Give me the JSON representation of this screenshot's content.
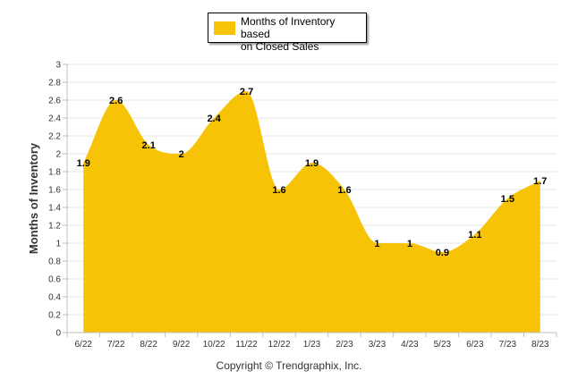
{
  "chart_data": {
    "type": "area",
    "categories": [
      "6/22",
      "7/22",
      "8/22",
      "9/22",
      "10/22",
      "11/22",
      "12/22",
      "1/23",
      "2/23",
      "3/23",
      "4/23",
      "5/23",
      "6/23",
      "7/23",
      "8/23"
    ],
    "series": [
      {
        "name": "Months of Inventory based on Closed Sales",
        "values": [
          1.9,
          2.6,
          2.1,
          2.0,
          2.4,
          2.7,
          1.6,
          1.9,
          1.6,
          1.0,
          1.0,
          0.9,
          1.1,
          1.5,
          1.7
        ],
        "labels": [
          "1.9",
          "2.6",
          "2.1",
          "2",
          "2.4",
          "2.7",
          "1.6",
          "1.9",
          "1.6",
          "1",
          "1",
          "0.9",
          "1.1",
          "1.5",
          "1.7"
        ]
      }
    ],
    "xlabel": "",
    "ylabel": "Months of Inventory",
    "ylim": [
      0,
      3
    ],
    "yticks": [
      "0",
      "0.2",
      "0.4",
      "0.6",
      "0.8",
      "1",
      "1.2",
      "1.4",
      "1.6",
      "1.8",
      "2",
      "2.2",
      "2.4",
      "2.6",
      "2.8",
      "3"
    ],
    "grid": true,
    "legend_position": "top-center",
    "fill_color": "#F7C306",
    "grid_color": "#E6E6E6",
    "axis_color": "#BFBFBF"
  },
  "legend": {
    "label_line1": "Months of Inventory based",
    "label_line2": "on Closed Sales"
  },
  "footer": {
    "copyright": "Copyright © Trendgraphix, Inc."
  }
}
